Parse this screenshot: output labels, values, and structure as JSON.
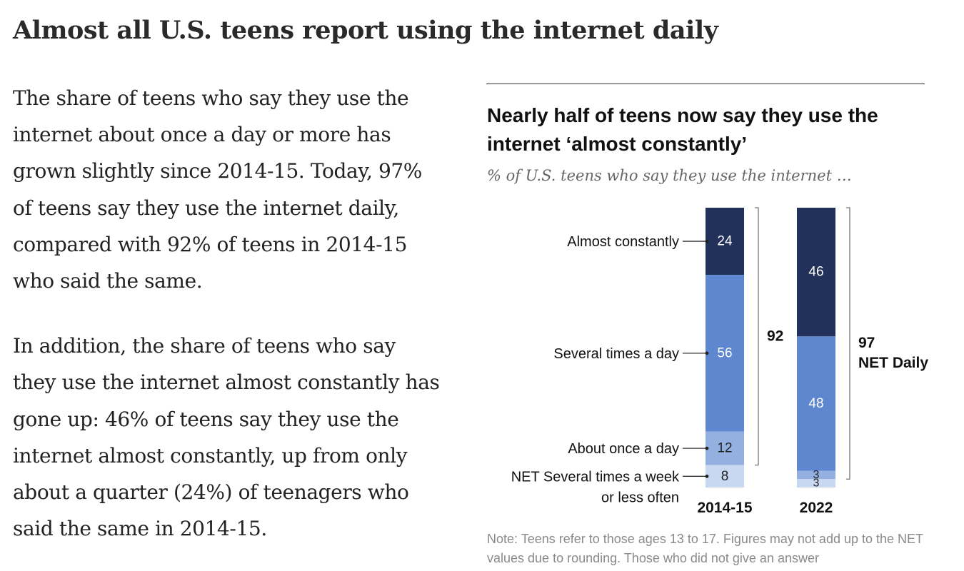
{
  "headline": "Almost all U.S. teens report using the internet daily",
  "paragraphs": [
    "The share of teens who say they use the internet about once a day or more has grown slightly since 2014-15. Today, 97% of teens say they use the internet daily, compared with 92% of teens in 2014-15 who said the same.",
    "In addition, the share of teens who say they use the internet almost constantly has gone up: 46% of teens say they use the internet almost constantly, up from only about a quarter (24%) of teenagers who said the same in 2014-15."
  ],
  "chart_note": "Note: Teens refer to those ages 13 to 17. Figures may not add up to the NET values due to rounding. Those who did not give an answer",
  "colors": {
    "almost_constantly": "#22315a",
    "several_times_day": "#5f87cf",
    "once_a_day": "#93b0e0",
    "net_several_week": "#c9d8f1"
  },
  "chart_data": {
    "type": "bar",
    "stacked": true,
    "title": "Nearly half of teens now say they use the internet ‘almost constantly’",
    "subtitle": "% of U.S. teens who say they use the internet …",
    "categories": [
      "2014-15",
      "2022"
    ],
    "series": [
      {
        "name": "Almost constantly",
        "color_key": "almost_constantly",
        "values": [
          24,
          46
        ]
      },
      {
        "name": "Several times a day",
        "color_key": "several_times_day",
        "values": [
          56,
          48
        ]
      },
      {
        "name": "About once a day",
        "color_key": "once_a_day",
        "values": [
          12,
          3
        ]
      },
      {
        "name": "NET Several times a week or less often",
        "color_key": "net_several_week",
        "values": [
          8,
          3
        ]
      }
    ],
    "net_daily": [
      {
        "category": "2014-15",
        "value": 92,
        "label": ""
      },
      {
        "category": "2022",
        "value": 97,
        "label": "NET Daily"
      }
    ]
  }
}
